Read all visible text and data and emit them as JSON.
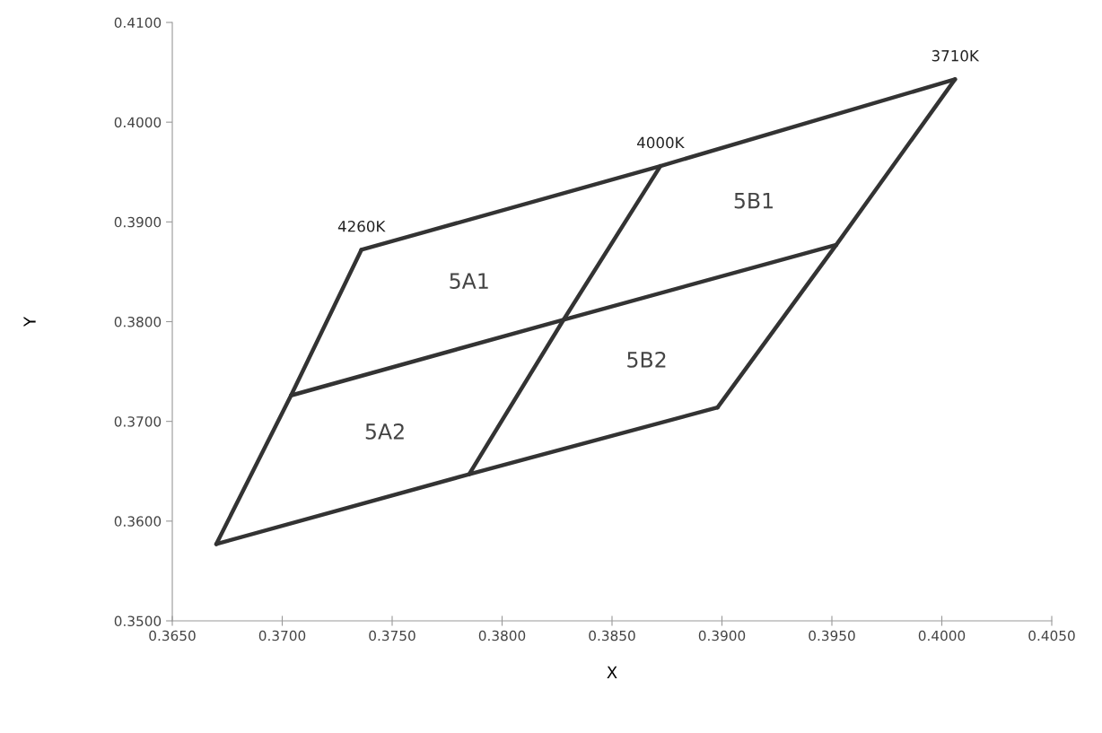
{
  "chart_data": {
    "type": "line",
    "xlabel": "X",
    "ylabel": "Y",
    "xlim": [
      0.365,
      0.405
    ],
    "ylim": [
      0.35,
      0.41
    ],
    "xticks": [
      {
        "value": 0.365,
        "label": "0.3650"
      },
      {
        "value": 0.37,
        "label": "0.3700"
      },
      {
        "value": 0.375,
        "label": "0.3750"
      },
      {
        "value": 0.38,
        "label": "0.3800"
      },
      {
        "value": 0.385,
        "label": "0.3850"
      },
      {
        "value": 0.39,
        "label": "0.3900"
      },
      {
        "value": 0.395,
        "label": "0.3950"
      },
      {
        "value": 0.4,
        "label": "0.4000"
      },
      {
        "value": 0.405,
        "label": "0.4050"
      }
    ],
    "yticks": [
      {
        "value": 0.35,
        "label": "0.3500"
      },
      {
        "value": 0.36,
        "label": "0.3600"
      },
      {
        "value": 0.37,
        "label": "0.3700"
      },
      {
        "value": 0.38,
        "label": "0.3800"
      },
      {
        "value": 0.39,
        "label": "0.3900"
      },
      {
        "value": 0.4,
        "label": "0.4000"
      },
      {
        "value": 0.41,
        "label": "0.4100"
      }
    ],
    "grid": false,
    "legend": false,
    "marker": "none",
    "line_style": "solid",
    "series": [
      {
        "color": "#333333",
        "x": [
          0.3736,
          0.3872,
          0.4006
        ],
        "values": [
          0.3872,
          0.3956,
          0.4043
        ]
      },
      {
        "color": "#333333",
        "x": [
          0.3704,
          0.3828,
          0.3952
        ],
        "values": [
          0.3726,
          0.3802,
          0.3877
        ]
      },
      {
        "color": "#333333",
        "x": [
          0.367,
          0.3785,
          0.3898
        ],
        "values": [
          0.3577,
          0.3647,
          0.3714
        ]
      },
      {
        "color": "#333333",
        "x": [
          0.3736,
          0.3704,
          0.367
        ],
        "values": [
          0.3872,
          0.3726,
          0.3577
        ]
      },
      {
        "color": "#333333",
        "x": [
          0.3872,
          0.3828,
          0.3785
        ],
        "values": [
          0.3956,
          0.3802,
          0.3647
        ]
      },
      {
        "color": "#333333",
        "x": [
          0.4006,
          0.3952,
          0.3898
        ],
        "values": [
          0.4043,
          0.3877,
          0.3714
        ]
      }
    ],
    "annotations": [
      {
        "text": "4260K",
        "x": 0.3736,
        "y": 0.3872
      },
      {
        "text": "4000K",
        "x": 0.3872,
        "y": 0.3956
      },
      {
        "text": "3710K",
        "x": 0.4006,
        "y": 0.4043
      },
      "5A1",
      "5B1",
      "5A2",
      "5B2"
    ]
  }
}
